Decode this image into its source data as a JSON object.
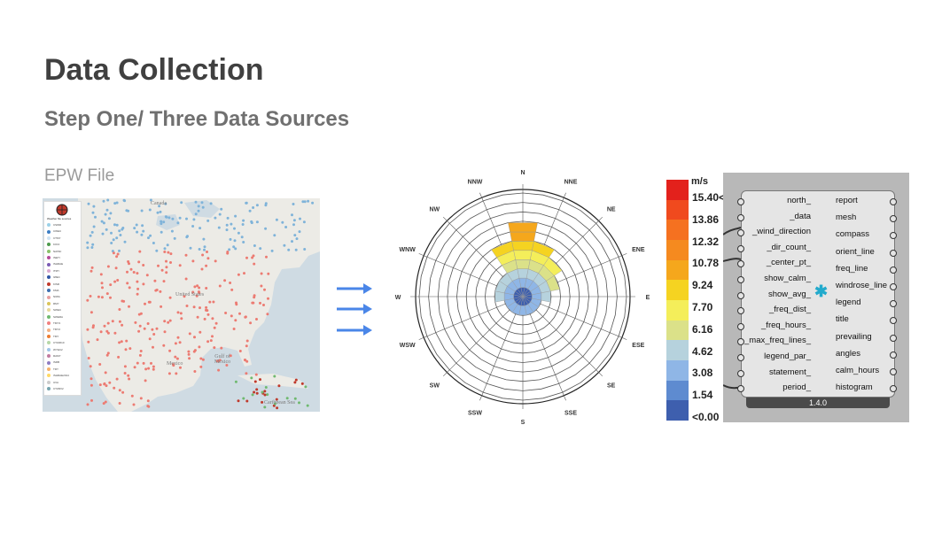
{
  "slide": {
    "title": "Data Collection",
    "subtitle": "Step One/ Three Data Sources",
    "section_label": "EPW File"
  },
  "map": {
    "canada_label": "Canada",
    "us_label": "United States",
    "mexico_label": "Mexico",
    "gulf_label": "Gulf of Mexico",
    "caribbean_label": "Caribbean Sea",
    "legend_title": "Weather file sources",
    "legend_items": [
      "CSWD",
      "CWEC",
      "CTMY",
      "KOCI",
      "NATAF",
      "INETI",
      "ISHRAE",
      "ITMY",
      "IWEC",
      "KISR",
      "KMA",
      "NIWA",
      "RMY",
      "SWEC",
      "SWERA",
      "TMY3",
      "TMY2",
      "TMY",
      "CTZ2010",
      "WYEC2",
      "RAMY",
      "ISDB",
      "TRY",
      "ISHRAE2014",
      "UVA",
      "CTZRV2"
    ],
    "legend_colors": [
      "#9bd1e8",
      "#3b7dc4",
      "#cfe3f3",
      "#4c9a4c",
      "#8ac26a",
      "#b54b9a",
      "#7a5bb5",
      "#d8a8d0",
      "#2d55a5",
      "#c0392b",
      "#3e6fb0",
      "#e8a0a0",
      "#d9c45a",
      "#e6d89a",
      "#6fb96f",
      "#f08080",
      "#f4b183",
      "#ed7d31",
      "#b6d7a8",
      "#9fc5e8",
      "#c27ba0",
      "#8e7cc3",
      "#f6b26b",
      "#ffd966",
      "#cccccc",
      "#76a5af"
    ]
  },
  "windrose": {
    "directions": [
      "N",
      "NNE",
      "NE",
      "ENE",
      "E",
      "ESE",
      "SE",
      "SSE",
      "S",
      "SSW",
      "SW",
      "WSW",
      "W",
      "WNW",
      "NW",
      "NNW"
    ]
  },
  "scale": {
    "unit": "m/s",
    "ticks": [
      "15.40<",
      "13.86",
      "12.32",
      "10.78",
      "9.24",
      "7.70",
      "6.16",
      "4.62",
      "3.08",
      "1.54",
      "<0.00"
    ],
    "colors": [
      "#e3211c",
      "#f04a1e",
      "#f57120",
      "#f58a1f",
      "#f5a71c",
      "#f5d321",
      "#f4ee5a",
      "#dbe189",
      "#b6d2dd",
      "#8fb6e6",
      "#5e8bd0",
      "#3e5fae"
    ]
  },
  "component": {
    "inputs": [
      "north_",
      "_data",
      "_wind_direction",
      "_dir_count_",
      "_center_pt_",
      "show_calm_",
      "show_avg_",
      "_freq_dist_",
      "_freq_hours_",
      "_max_freq_lines_",
      "legend_par_",
      "statement_",
      "period_"
    ],
    "outputs": [
      "report",
      "mesh",
      "compass",
      "orient_line",
      "freq_line",
      "windrose_line",
      "legend",
      "title",
      "prevailing",
      "angles",
      "calm_hours",
      "histogram"
    ],
    "version": "1.4.0",
    "icon": "windrose-icon"
  }
}
